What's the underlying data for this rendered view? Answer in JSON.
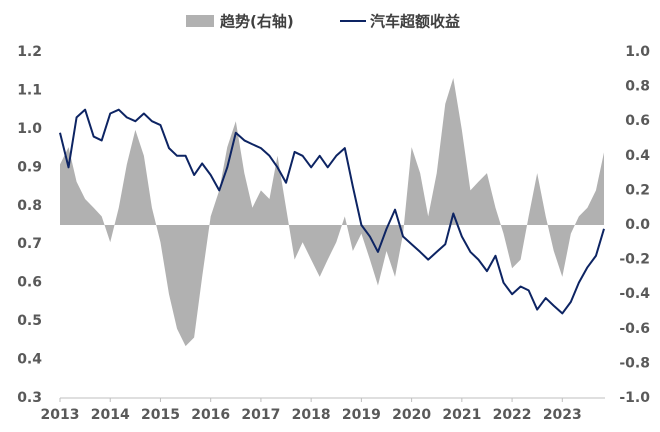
{
  "chart_data": {
    "type": "line-area",
    "x": [
      2013,
      2013.17,
      2013.33,
      2013.5,
      2013.67,
      2013.83,
      2014,
      2014.17,
      2014.33,
      2014.5,
      2014.67,
      2014.83,
      2015,
      2015.17,
      2015.33,
      2015.5,
      2015.67,
      2015.83,
      2016,
      2016.17,
      2016.33,
      2016.5,
      2016.67,
      2016.83,
      2017,
      2017.17,
      2017.33,
      2017.5,
      2017.67,
      2017.83,
      2018,
      2018.17,
      2018.33,
      2018.5,
      2018.67,
      2018.83,
      2019,
      2019.17,
      2019.33,
      2019.5,
      2019.67,
      2019.83,
      2020,
      2020.17,
      2020.33,
      2020.5,
      2020.67,
      2020.83,
      2021,
      2021.17,
      2021.33,
      2021.5,
      2021.67,
      2021.83,
      2022,
      2022.17,
      2022.33,
      2022.5,
      2022.67,
      2022.83,
      2023,
      2023.17,
      2023.33,
      2023.5,
      2023.67,
      2023.83
    ],
    "series": [
      {
        "name": "趋势(右轴)",
        "color": "#b1b1b1",
        "axis": "y2",
        "kind": "area",
        "values": [
          0.35,
          0.45,
          0.25,
          0.15,
          0.1,
          0.05,
          -0.1,
          0.1,
          0.35,
          0.55,
          0.4,
          0.1,
          -0.1,
          -0.4,
          -0.6,
          -0.7,
          -0.65,
          -0.3,
          0.05,
          0.2,
          0.45,
          0.6,
          0.3,
          0.1,
          0.2,
          0.15,
          0.4,
          0.1,
          -0.2,
          -0.1,
          -0.2,
          -0.3,
          -0.2,
          -0.1,
          0.05,
          -0.15,
          -0.05,
          -0.2,
          -0.35,
          -0.15,
          -0.3,
          -0.05,
          0.45,
          0.3,
          0.05,
          0.3,
          0.7,
          0.85,
          0.55,
          0.2,
          0.25,
          0.3,
          0.1,
          -0.05,
          -0.25,
          -0.2,
          0.05,
          0.3,
          0.05,
          -0.15,
          -0.3,
          -0.05,
          0.05,
          0.1,
          0.2,
          0.42
        ]
      },
      {
        "name": "汽车超额收益",
        "color": "#0d2463",
        "kind": "line",
        "values": [
          0.99,
          0.9,
          1.03,
          1.05,
          0.98,
          0.97,
          1.04,
          1.05,
          1.03,
          1.02,
          1.04,
          1.02,
          1.01,
          0.95,
          0.93,
          0.93,
          0.88,
          0.91,
          0.88,
          0.84,
          0.9,
          0.99,
          0.97,
          0.96,
          0.95,
          0.93,
          0.9,
          0.86,
          0.94,
          0.93,
          0.9,
          0.93,
          0.9,
          0.93,
          0.95,
          0.85,
          0.75,
          0.72,
          0.68,
          0.74,
          0.79,
          0.72,
          0.7,
          0.68,
          0.66,
          0.68,
          0.7,
          0.78,
          0.72,
          0.68,
          0.66,
          0.63,
          0.67,
          0.6,
          0.57,
          0.59,
          0.58,
          0.53,
          0.56,
          0.54,
          0.52,
          0.55,
          0.6,
          0.64,
          0.67,
          0.74
        ]
      }
    ],
    "xlim": [
      2013,
      2023.85
    ],
    "xticks": [
      2013,
      2014,
      2015,
      2016,
      2017,
      2018,
      2019,
      2020,
      2021,
      2022,
      2023
    ],
    "ylim": [
      0.3,
      1.2
    ],
    "yticks": [
      0.3,
      0.4,
      0.5,
      0.6,
      0.7,
      0.8,
      0.9,
      {
        "value": 1.0,
        "label": "1.0"
      },
      1.1,
      1.2
    ],
    "y2lim": [
      -1,
      1
    ],
    "y2ticks": [
      {
        "value": -1,
        "label": "-1.0"
      },
      -0.8,
      -0.6,
      -0.4,
      -0.2,
      {
        "value": 0,
        "label": "0.0"
      },
      0.2,
      0.4,
      0.6,
      0.8,
      {
        "value": 1,
        "label": "1.0"
      }
    ],
    "legend": "top"
  }
}
